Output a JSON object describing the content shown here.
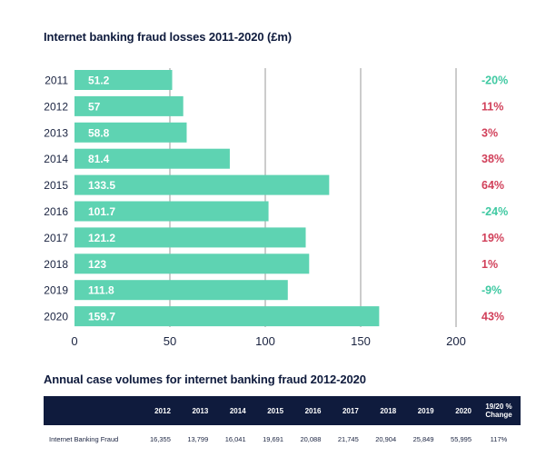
{
  "chart_title": "Internet banking fraud losses 2011-2020 (£m)",
  "chart_data": {
    "type": "bar",
    "orientation": "horizontal",
    "title": "Internet banking fraud losses 2011-2020 (£m)",
    "categories": [
      "2011",
      "2012",
      "2013",
      "2014",
      "2015",
      "2016",
      "2017",
      "2018",
      "2019",
      "2020"
    ],
    "values": [
      51.2,
      57,
      58.8,
      81.4,
      133.5,
      101.7,
      121.2,
      123,
      111.8,
      159.7
    ],
    "value_labels": [
      "51.2",
      "57",
      "58.8",
      "81.4",
      "133.5",
      "101.7",
      "121.2",
      "123",
      "111.8",
      "159.7"
    ],
    "change": [
      "-20%",
      "11%",
      "3%",
      "38%",
      "64%",
      "-24%",
      "19%",
      "1%",
      "-9%",
      "43%"
    ],
    "xlim": [
      0,
      200
    ],
    "xticks": [
      "0",
      "50",
      "100",
      "150",
      "200"
    ],
    "grid": "vertical lines at 50, 100, 150, 200",
    "bar_color": "#5ed3b2",
    "increase_color": "#d1405a",
    "decrease_color": "#3fc9a2"
  },
  "table": {
    "title": "Annual case volumes for internet banking fraud 2012-2020",
    "header_color": "#0f1b3d",
    "columns": [
      "2012",
      "2013",
      "2014",
      "2015",
      "2016",
      "2017",
      "2018",
      "2019",
      "2020",
      "19/20 % Change"
    ],
    "rows": [
      {
        "label": "Internet Banking Fraud",
        "values": [
          "16,355",
          "13,799",
          "16,041",
          "19,691",
          "20,088",
          "21,745",
          "20,904",
          "25,849",
          "55,995",
          "117%"
        ]
      }
    ]
  }
}
